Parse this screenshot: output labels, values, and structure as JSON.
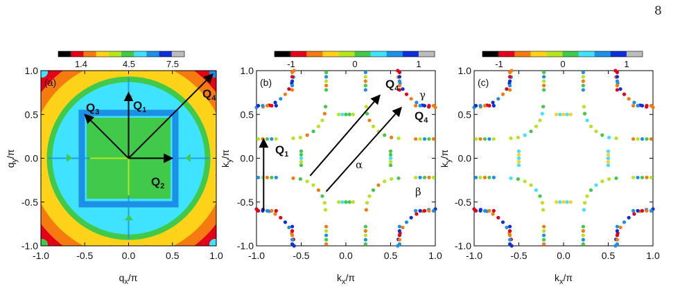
{
  "page_number": "8",
  "colors": {
    "scale": [
      "#000000",
      "#e5001a",
      "#f57a10",
      "#ffd21a",
      "#b5e61d",
      "#41c94a",
      "#3fe3ff",
      "#1c8fe6",
      "#0d2ed8",
      "#bcbcbc"
    ],
    "arrow": "#000000"
  },
  "panels": [
    {
      "id": "a",
      "tag": "(a)",
      "xlabel": "q",
      "xlabel_sub": "x",
      "ylabel": "q",
      "ylabel_sub": "y",
      "axis_unit": "/π",
      "ticks": [
        "-1.0",
        "-0.5",
        "0.0",
        "0.5",
        "1.0"
      ],
      "colorbar": {
        "labels": [
          "1.4",
          "4.5",
          "7.5"
        ]
      },
      "vectors": [
        {
          "label": "Q",
          "sub": "1",
          "from": [
            0,
            0
          ],
          "to": [
            0,
            0.75
          ]
        },
        {
          "label": "Q",
          "sub": "2",
          "from": [
            0,
            0
          ],
          "to": [
            0.5,
            0
          ]
        },
        {
          "label": "Q",
          "sub": "3",
          "from": [
            0,
            0
          ],
          "to": [
            -0.5,
            0.5
          ]
        },
        {
          "label": "Q",
          "sub": "4",
          "from": [
            0,
            0
          ],
          "to": [
            0.96,
            0.96
          ]
        }
      ]
    },
    {
      "id": "b",
      "tag": "(b)",
      "xlabel": "k",
      "xlabel_sub": "x",
      "ylabel": "k",
      "ylabel_sub": "y",
      "axis_unit": "/π",
      "ticks": [
        "-1.0",
        "-0.5",
        "0.0",
        "0.5",
        "1.0"
      ],
      "colorbar": {
        "labels": [
          "-1",
          "0",
          "1"
        ]
      },
      "band_labels": [
        "α",
        "β",
        "γ"
      ],
      "vectors": [
        {
          "label": "Q",
          "sub": "1",
          "from": [
            -0.92,
            -0.6
          ],
          "to": [
            -0.92,
            0.22
          ]
        },
        {
          "label": "Q",
          "sub": "4",
          "from": [
            -0.4,
            -0.2
          ],
          "to": [
            0.38,
            0.72
          ]
        },
        {
          "label": "Q",
          "sub": "4",
          "from": [
            -0.22,
            -0.38
          ],
          "to": [
            0.62,
            0.58
          ]
        }
      ]
    },
    {
      "id": "c",
      "tag": "(c)",
      "xlabel": "k",
      "xlabel_sub": "x",
      "ylabel": "k",
      "ylabel_sub": "y",
      "axis_unit": "/π",
      "ticks": [
        "-1.0",
        "-0.5",
        "0.0",
        "0.5",
        "1.0"
      ],
      "colorbar": {
        "labels": [
          "-1",
          "0",
          "1"
        ]
      }
    }
  ]
}
